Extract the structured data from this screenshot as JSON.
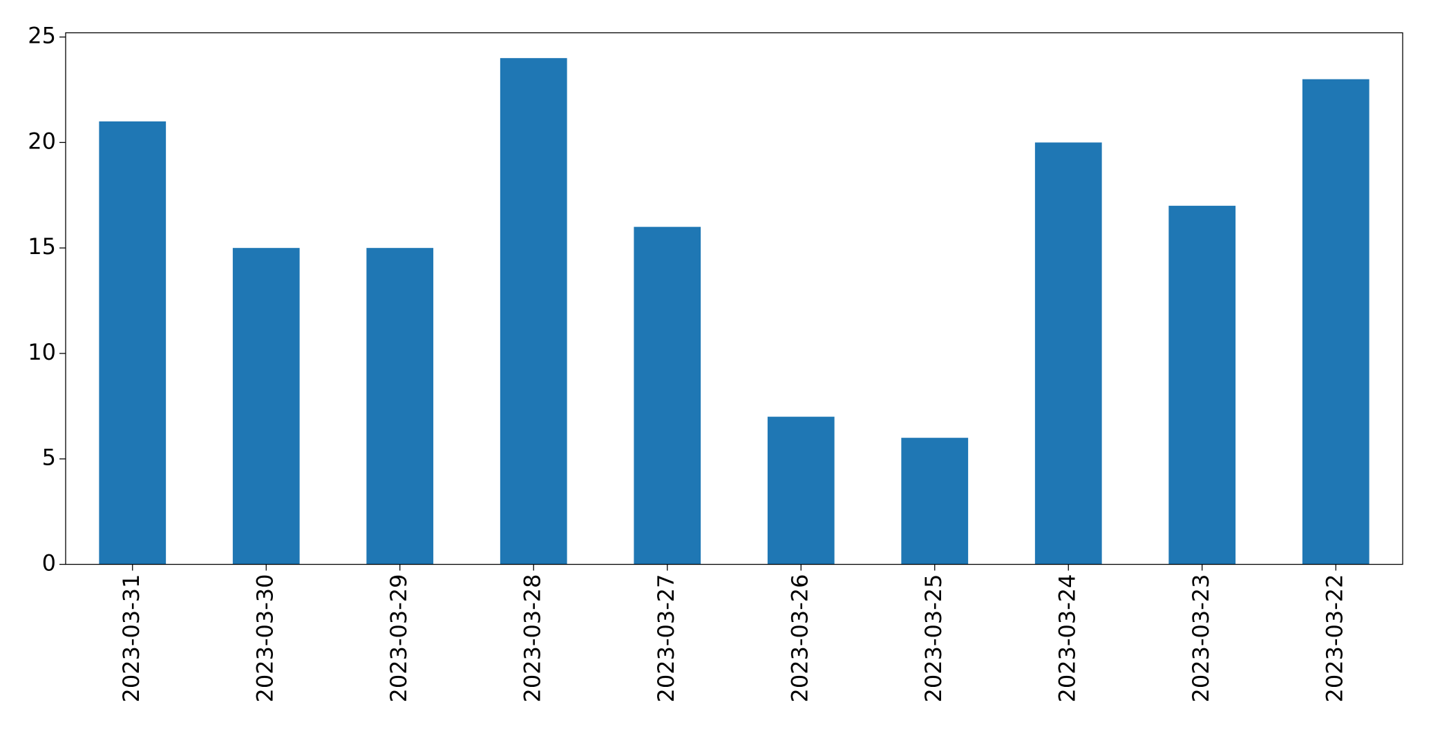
{
  "chart_data": {
    "type": "bar",
    "categories": [
      "2023-03-31",
      "2023-03-30",
      "2023-03-29",
      "2023-03-28",
      "2023-03-27",
      "2023-03-26",
      "2023-03-25",
      "2023-03-24",
      "2023-03-23",
      "2023-03-22"
    ],
    "values": [
      21,
      15,
      15,
      24,
      16,
      7,
      6,
      20,
      17,
      23
    ],
    "color": "#1f77b4",
    "ylim": [
      0,
      25.2
    ],
    "yticks": [
      0,
      5,
      10,
      15,
      20,
      25
    ],
    "grid": false
  }
}
